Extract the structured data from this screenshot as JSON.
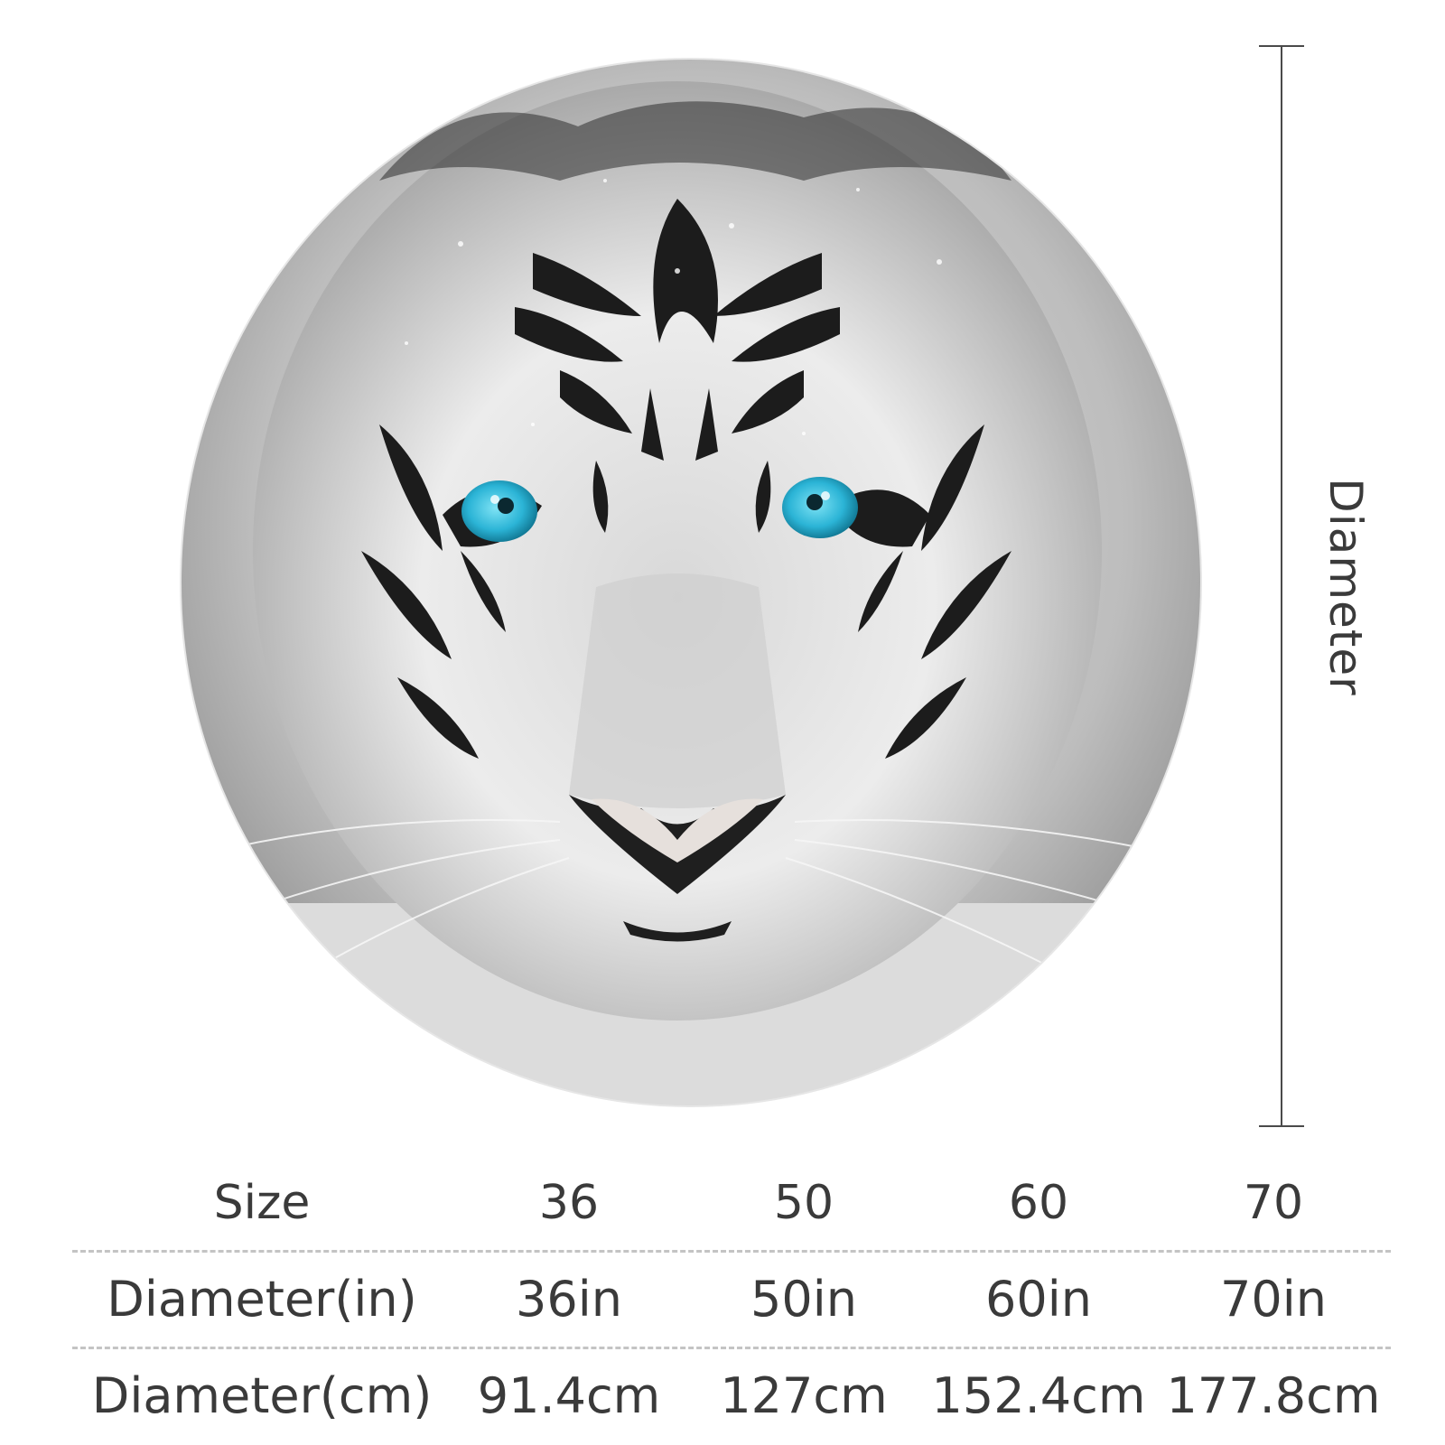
{
  "product_image": {
    "alt": "White tiger face round rug",
    "eye_color": "#2bb4d6"
  },
  "measure": {
    "label": "Diameter",
    "line_color": "#4a4a4a"
  },
  "size_table": {
    "header": {
      "label": "Size",
      "values": [
        "36",
        "50",
        "60",
        "70"
      ]
    },
    "inches": {
      "label": "Diameter(in)",
      "values": [
        "36in",
        "50in",
        "60in",
        "70in"
      ]
    },
    "centimeters": {
      "label": "Diameter(cm)",
      "values": [
        "91.4cm",
        "127cm",
        "152.4cm",
        "177.8cm"
      ]
    }
  }
}
